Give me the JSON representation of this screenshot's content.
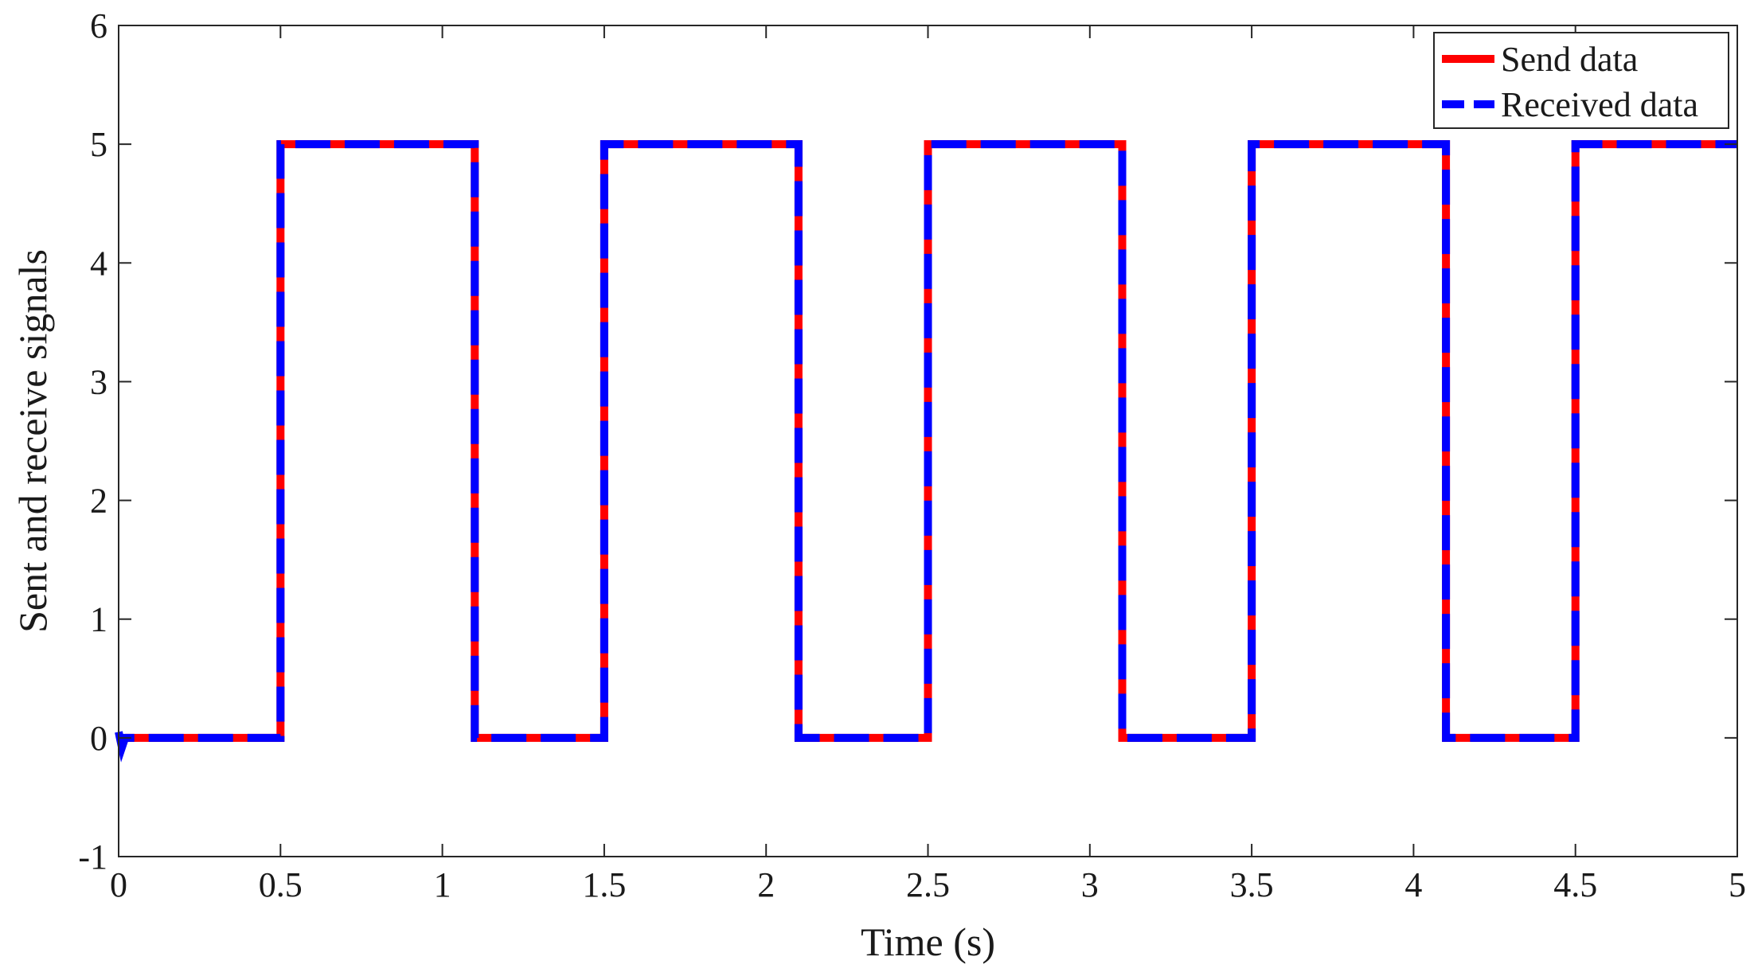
{
  "chart_data": {
    "type": "line",
    "xlabel": "Time (s)",
    "ylabel": "Sent and receive signals",
    "xlim": [
      0,
      5
    ],
    "ylim": [
      -1,
      6
    ],
    "xticks": [
      0,
      0.5,
      1,
      1.5,
      2,
      2.5,
      3,
      3.5,
      4,
      4.5,
      5
    ],
    "xtick_labels": [
      "0",
      "0.5",
      "1",
      "1.5",
      "2",
      "2.5",
      "3",
      "3.5",
      "4",
      "4.5",
      "5"
    ],
    "yticks": [
      -1,
      0,
      1,
      2,
      3,
      4,
      5,
      6
    ],
    "ytick_labels": [
      "-1",
      "0",
      "1",
      "2",
      "3",
      "4",
      "5",
      "6"
    ],
    "grid": false,
    "legend": "top-right",
    "series": [
      {
        "name": "Send data",
        "color": "#ff0000",
        "style": "solid",
        "x": [
          0.02,
          0.5,
          0.5,
          1.1,
          1.1,
          1.5,
          1.5,
          2.1,
          2.1,
          2.5,
          2.5,
          3.1,
          3.1,
          3.5,
          3.5,
          4.1,
          4.1,
          4.5,
          4.5,
          5
        ],
        "y": [
          0,
          0,
          5,
          5,
          0,
          0,
          5,
          5,
          0,
          0,
          5,
          5,
          0,
          0,
          5,
          5,
          0,
          0,
          5,
          5
        ]
      },
      {
        "name": "Received data",
        "color": "#0000ff",
        "style": "dashed",
        "x": [
          0,
          0.01,
          0.02,
          0.5,
          0.5,
          1.1,
          1.1,
          1.5,
          1.5,
          2.1,
          2.1,
          2.5,
          2.5,
          3.1,
          3.1,
          3.5,
          3.5,
          4.1,
          4.1,
          4.5,
          4.5,
          5
        ],
        "y": [
          0.05,
          -0.08,
          0,
          0,
          5,
          5,
          0,
          0,
          5,
          5,
          0,
          0,
          5,
          5,
          0,
          0,
          5,
          5,
          0,
          0,
          5,
          5
        ]
      }
    ]
  }
}
